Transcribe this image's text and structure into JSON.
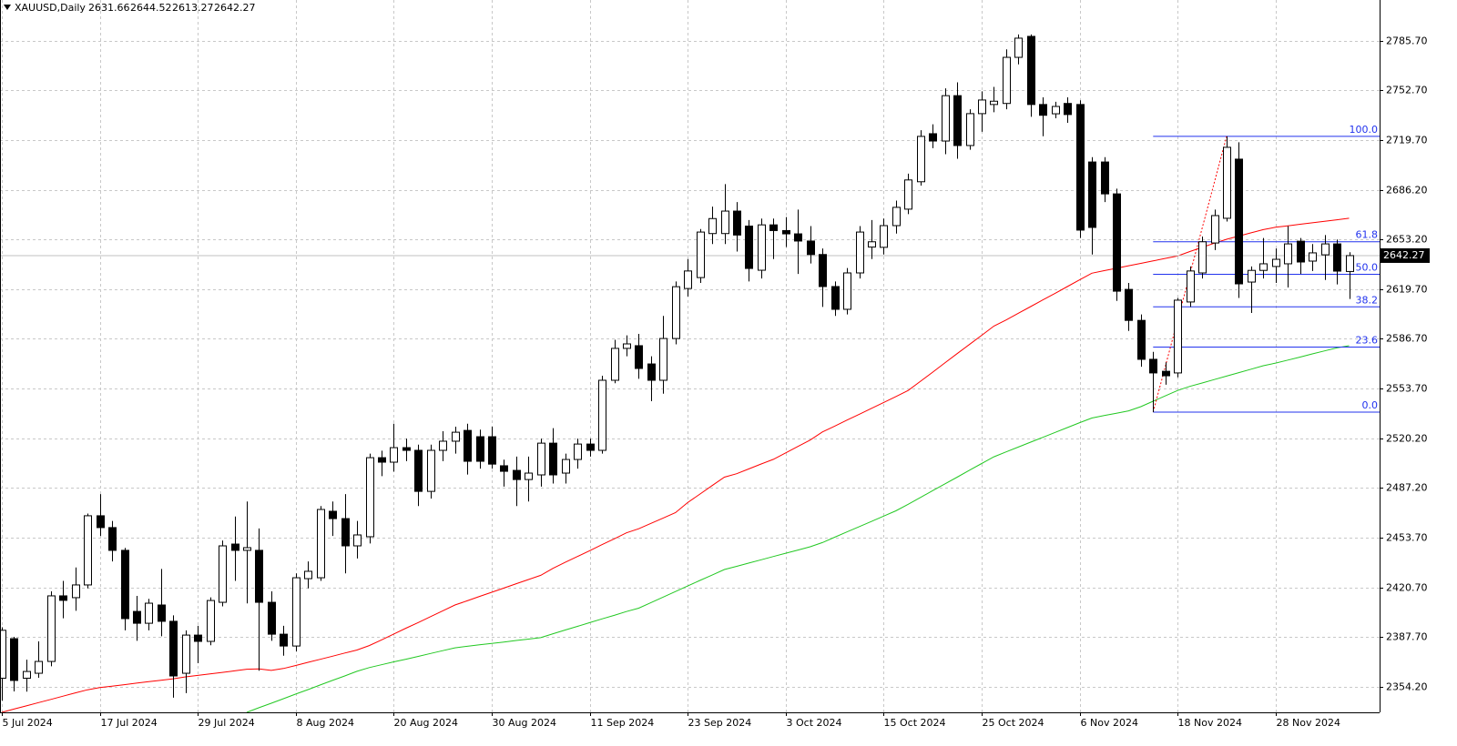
{
  "header": {
    "symbol": "XAUUSD,Daily",
    "ohlc": [
      2631.66,
      2644.52,
      2613.27,
      2642.27
    ]
  },
  "chart_data": {
    "type": "candlestick",
    "categories": [
      "5 Jul 2024",
      null,
      null,
      null,
      null,
      null,
      null,
      null,
      "17 Jul 2024",
      null,
      null,
      null,
      null,
      null,
      null,
      null,
      "29 Jul 2024",
      null,
      null,
      null,
      null,
      null,
      null,
      null,
      "8 Aug 2024",
      null,
      null,
      null,
      null,
      null,
      null,
      null,
      "20 Aug 2024",
      null,
      null,
      null,
      null,
      null,
      null,
      null,
      "30 Aug 2024",
      null,
      null,
      null,
      null,
      null,
      null,
      null,
      "11 Sep 2024",
      null,
      null,
      null,
      null,
      null,
      null,
      null,
      "23 Sep 2024",
      null,
      null,
      null,
      null,
      null,
      null,
      null,
      "3 Oct 2024",
      null,
      null,
      null,
      null,
      null,
      null,
      null,
      "15 Oct 2024",
      null,
      null,
      null,
      null,
      null,
      null,
      null,
      "25 Oct 2024",
      null,
      null,
      null,
      null,
      null,
      null,
      null,
      "6 Nov 2024",
      null,
      null,
      null,
      null,
      null,
      null,
      null,
      "18 Nov 2024",
      null,
      null,
      null,
      null,
      null,
      null,
      null,
      "28 Nov 2024",
      null,
      null,
      null,
      null,
      null,
      null
    ],
    "open": [
      2360,
      2386.4,
      2360,
      2363.3,
      2371.2,
      2415,
      2413.8,
      2422.3,
      2468.5,
      2460.6,
      2445.4,
      2404.6,
      2396.7,
      2408.9,
      2398,
      2363.3,
      2388.8,
      2384.6,
      2410.7,
      2449.6,
      2445.4,
      2445.4,
      2410.7,
      2389.4,
      2381.5,
      2426.5,
      2427.1,
      2471.5,
      2466.6,
      2448.4,
      2454.5,
      2507.3,
      2504.3,
      2514,
      2512.2,
      2484.8,
      2512.2,
      2518.3,
      2525.5,
      2521.3,
      2521.3,
      2501.9,
      2498.8,
      2492.7,
      2495.8,
      2517,
      2497,
      2506.1,
      2516.4,
      2512.2,
      2559,
      2580.3,
      2582.1,
      2569.9,
      2559,
      2586.9,
      2620.3,
      2627.6,
      2657,
      2657,
      2672,
      2662,
      2632.5,
      2662.8,
      2659,
      2656.8,
      2652,
      2643,
      2621.6,
      2606.4,
      2630.7,
      2648,
      2647.8,
      2662.3,
      2673.3,
      2691.6,
      2723.7,
      2718.8,
      2749.1,
      2715.8,
      2737.1,
      2743.2,
      2743.9,
      2774.7,
      2788.7,
      2743.2,
      2737,
      2743.9,
      2743.2,
      2704.8,
      2704.8,
      2683.5,
      2619.7,
      2599,
      2573,
      2565,
      2563.9,
      2611.3,
      2630.7,
      2650.7,
      2667.2,
      2706.7,
      2624.6,
      2632.4,
      2635,
      2636.8,
      2651.9,
      2638.6,
      2642.8,
      2650.1,
      2631.66
    ],
    "high": [
      2394,
      2387.6,
      2372.4,
      2384.6,
      2418,
      2425,
      2434,
      2470,
      2483,
      2465,
      2447,
      2415,
      2413,
      2433,
      2402,
      2392,
      2395,
      2414,
      2452,
      2468,
      2478,
      2460,
      2418,
      2395,
      2430,
      2438,
      2475,
      2478,
      2483,
      2465,
      2510,
      2512,
      2530,
      2520,
      2516,
      2516,
      2525,
      2528,
      2530,
      2526,
      2528,
      2506,
      2508,
      2508,
      2520,
      2527,
      2510,
      2520,
      2520,
      2562,
      2586,
      2589,
      2590,
      2575,
      2602,
      2625,
      2640,
      2660,
      2675,
      2690,
      2678,
      2666,
      2667,
      2667,
      2668,
      2673,
      2662,
      2647,
      2625,
      2634,
      2662,
      2666,
      2667,
      2679,
      2697,
      2726,
      2730,
      2754,
      2758,
      2740,
      2752,
      2755,
      2780,
      2790,
      2790,
      2748,
      2745,
      2748,
      2746,
      2708,
      2708,
      2687,
      2624,
      2603,
      2578,
      2571,
      2614,
      2635,
      2655,
      2673,
      2721.9,
      2718,
      2635,
      2654,
      2647,
      2662,
      2654,
      2650,
      2656,
      2653,
      2644.52
    ],
    "low": [
      2345,
      2351.2,
      2351,
      2360.3,
      2368,
      2400,
      2405,
      2420,
      2455,
      2438,
      2392,
      2385,
      2392,
      2388,
      2347,
      2350,
      2370,
      2382,
      2408,
      2425,
      2410,
      2365,
      2385,
      2375,
      2378,
      2420,
      2425,
      2455,
      2430,
      2440,
      2450,
      2495,
      2498,
      2505,
      2475,
      2480,
      2505,
      2510,
      2496,
      2500,
      2500,
      2488,
      2475,
      2478,
      2488,
      2490,
      2490,
      2500,
      2508,
      2510,
      2557,
      2575,
      2560,
      2545,
      2550,
      2583,
      2615,
      2624,
      2650,
      2650,
      2645,
      2625,
      2627,
      2640,
      2648,
      2630,
      2637,
      2608,
      2602,
      2603,
      2627,
      2640,
      2643,
      2657,
      2670,
      2689,
      2714,
      2710,
      2707,
      2713,
      2725,
      2738,
      2740,
      2770,
      2735,
      2722,
      2734,
      2731,
      2654,
      2643,
      2678,
      2612,
      2592,
      2568,
      2537.7,
      2556,
      2561,
      2608,
      2627,
      2646,
      2665,
      2614,
      2604,
      2627,
      2624,
      2621,
      2630,
      2632,
      2626,
      2623,
      2613.27
    ],
    "close": [
      2392,
      2358.5,
      2364.5,
      2371.2,
      2415,
      2412,
      2422.3,
      2468.5,
      2460.6,
      2445.4,
      2399.8,
      2396.7,
      2410.1,
      2398,
      2361.5,
      2388.8,
      2384.6,
      2411.9,
      2448.4,
      2445.4,
      2447.2,
      2410.7,
      2389.4,
      2381.5,
      2427.1,
      2431.4,
      2472.7,
      2466.6,
      2448.4,
      2455.7,
      2507.3,
      2504.3,
      2514,
      2512.2,
      2484.8,
      2512.2,
      2518.3,
      2524.3,
      2504.9,
      2504.9,
      2503,
      2498.2,
      2492.7,
      2497,
      2517,
      2495.8,
      2506.1,
      2516.4,
      2512.2,
      2559,
      2580.3,
      2583.3,
      2566.9,
      2559,
      2586.9,
      2621.5,
      2632,
      2658,
      2667,
      2672,
      2656,
      2633.7,
      2662.8,
      2659,
      2656.8,
      2652,
      2643,
      2621.6,
      2606.4,
      2630.7,
      2658,
      2651.5,
      2662.3,
      2674.5,
      2692.8,
      2721.9,
      2718.8,
      2749.1,
      2715.8,
      2737.1,
      2746.2,
      2745.4,
      2774.7,
      2787.5,
      2743.2,
      2736,
      2741.9,
      2736.5,
      2659.3,
      2661.1,
      2683.5,
      2618.5,
      2599,
      2573,
      2563.9,
      2562,
      2612.5,
      2632,
      2651.5,
      2669,
      2714.6,
      2623.4,
      2632.4,
      2636.8,
      2639.8,
      2650.1,
      2638,
      2644.1,
      2650.1,
      2631.9,
      2642.27
    ],
    "up_color": "#ffffff",
    "down_color": "#000000",
    "series": [
      {
        "color": "#ff0000",
        "values": [
          2337.2,
          2339.4,
          2341.5,
          2343.7,
          2345.8,
          2348,
          2350.2,
          2352.3,
          2353.7,
          2354.7,
          2355.7,
          2356.7,
          2357.7,
          2358.6,
          2359.6,
          2360.9,
          2361.9,
          2362.9,
          2363.9,
          2364.9,
          2366,
          2366.2,
          2365.2,
          2366.5,
          2368.5,
          2370.6,
          2372.6,
          2374.7,
          2376.8,
          2378.8,
          2381.8,
          2385.6,
          2389.5,
          2393.4,
          2397.2,
          2401.1,
          2405,
          2408.9,
          2411.7,
          2414.6,
          2417.4,
          2420.2,
          2423.1,
          2425.9,
          2428.7,
          2433.4,
          2437.4,
          2441.3,
          2445.2,
          2449.2,
          2453.1,
          2457.1,
          2459.8,
          2463.4,
          2467,
          2470.6,
          2477.3,
          2483,
          2488.7,
          2494.3,
          2496.6,
          2499.8,
          2503.1,
          2506.2,
          2510.5,
          2514.8,
          2519.1,
          2524.5,
          2528.4,
          2532.4,
          2536.3,
          2540.2,
          2544.2,
          2548.1,
          2552.2,
          2558.3,
          2564.4,
          2570.6,
          2576.8,
          2582.9,
          2589,
          2595.2,
          2599.3,
          2603.8,
          2608.2,
          2612.7,
          2617.1,
          2621.6,
          2626.1,
          2630.5,
          2632.2,
          2633.8,
          2635.5,
          2637.1,
          2638.7,
          2640.4,
          2642,
          2645,
          2647.8,
          2650.6,
          2653.2,
          2655.3,
          2657.5,
          2659.6,
          2661.2,
          2662.2,
          2663.2,
          2664.2,
          2665.2,
          2666.2,
          2667.2
        ]
      },
      {
        "color": "#22c822",
        "values": [
          null,
          null,
          null,
          null,
          null,
          null,
          null,
          null,
          null,
          null,
          null,
          null,
          null,
          null,
          null,
          null,
          null,
          null,
          null,
          null,
          2337.2,
          2340.3,
          2343.3,
          2346.3,
          2349.4,
          2352.4,
          2355.5,
          2358.5,
          2361.5,
          2364.6,
          2367.1,
          2369,
          2370.9,
          2372.7,
          2374.6,
          2376.5,
          2378.4,
          2380.3,
          2381.3,
          2382.3,
          2383.2,
          2384.2,
          2385.2,
          2386.1,
          2387.1,
          2389.7,
          2392.2,
          2394.6,
          2397.1,
          2399.6,
          2402,
          2404.5,
          2406.8,
          2410.5,
          2414.2,
          2417.9,
          2421.6,
          2425.3,
          2428.9,
          2432.6,
          2434.7,
          2436.9,
          2439.1,
          2441.3,
          2443.5,
          2445.6,
          2447.8,
          2450.6,
          2454.2,
          2457.7,
          2461.2,
          2464.7,
          2468.3,
          2471.8,
          2476.2,
          2480.7,
          2485.3,
          2489.8,
          2494.3,
          2498.9,
          2503.4,
          2507.9,
          2511.2,
          2514.4,
          2517.7,
          2520.9,
          2524.2,
          2527.4,
          2530.7,
          2533.8,
          2535.4,
          2537,
          2538.6,
          2541.4,
          2545,
          2548.6,
          2552.2,
          2554.9,
          2557.2,
          2559.5,
          2561.8,
          2564.1,
          2566.4,
          2568.7,
          2570.5,
          2572.5,
          2574.5,
          2576.6,
          2578.6,
          2580.6,
          2582.1
        ]
      }
    ],
    "fibonacci": {
      "color": "#2233ee",
      "start_index": 94,
      "end_index": 100,
      "low": 2537.7,
      "high": 2721.9,
      "levels": [
        {
          "value": 100,
          "label": "100.0"
        },
        61.8,
        {
          "value": 50,
          "label": "50.0"
        },
        38.2,
        23.6,
        {
          "value": 0,
          "label": "0.0"
        }
      ]
    },
    "current_price": 2642.27,
    "ylim": [
      2337.2,
      2813.0
    ],
    "yticks": [
      {
        "value": 2354.2,
        "label": "2354.20"
      },
      {
        "value": 2387.7,
        "label": "2387.70"
      },
      {
        "value": 2420.7,
        "label": "2420.70"
      },
      {
        "value": 2453.7,
        "label": "2453.70"
      },
      {
        "value": 2487.2,
        "label": "2487.20"
      },
      {
        "value": 2520.2,
        "label": "2520.20"
      },
      {
        "value": 2553.7,
        "label": "2553.70"
      },
      {
        "value": 2586.7,
        "label": "2586.70"
      },
      {
        "value": 2619.7,
        "label": "2619.70"
      },
      {
        "value": 2653.2,
        "label": "2653.20"
      },
      {
        "value": 2686.2,
        "label": "2686.20"
      },
      {
        "value": 2719.7,
        "label": "2719.70"
      },
      {
        "value": 2752.7,
        "label": "2752.70"
      },
      {
        "value": 2785.7,
        "label": "2785.70"
      }
    ],
    "grid": true
  }
}
